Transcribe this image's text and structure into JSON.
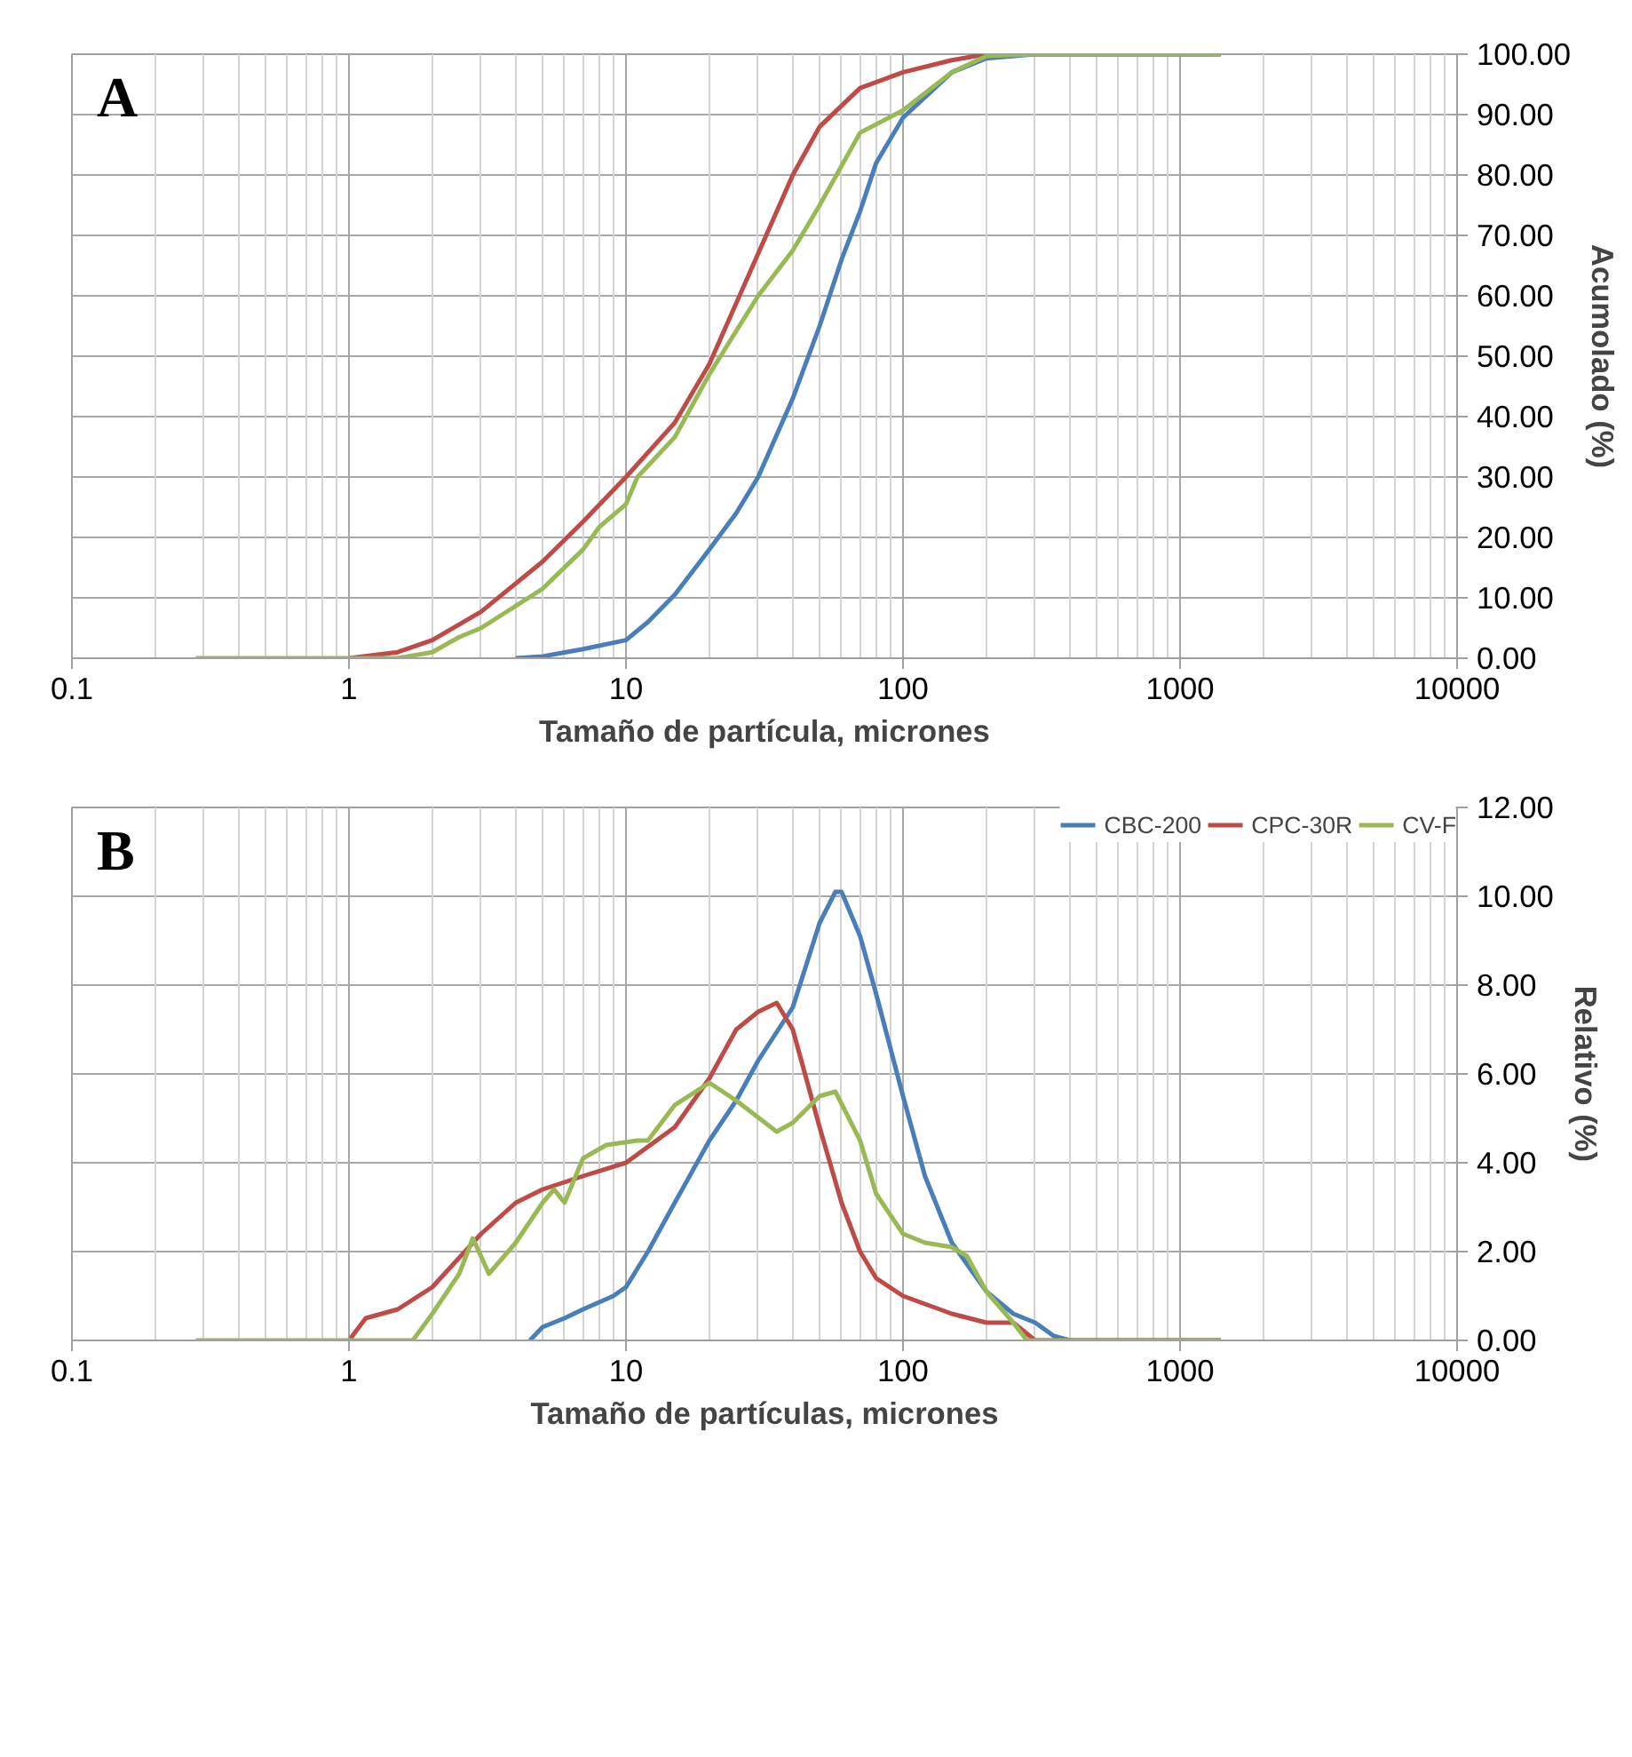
{
  "chart_data": [
    {
      "type": "line",
      "annotations": [
        "A"
      ],
      "xlabel": "Tamaño de partícula, micrones",
      "ylabel": "Acumolado (%)",
      "log": "x",
      "grid": true,
      "legend": false,
      "xlim": [
        0.1,
        10000
      ],
      "xticks": [
        0.1,
        {
          "value": 0.2,
          "label": null
        },
        {
          "value": 0.3,
          "label": null
        },
        {
          "value": 0.4,
          "label": null
        },
        {
          "value": 0.5,
          "label": null
        },
        {
          "value": 0.6,
          "label": null
        },
        {
          "value": 0.7,
          "label": null
        },
        {
          "value": 0.8,
          "label": null
        },
        {
          "value": 0.9,
          "label": null
        },
        1,
        {
          "value": 2,
          "label": null
        },
        {
          "value": 3,
          "label": null
        },
        {
          "value": 4,
          "label": null
        },
        {
          "value": 5,
          "label": null
        },
        {
          "value": 6,
          "label": null
        },
        {
          "value": 7,
          "label": null
        },
        {
          "value": 8,
          "label": null
        },
        {
          "value": 9,
          "label": null
        },
        10,
        {
          "value": 20,
          "label": null
        },
        {
          "value": 30,
          "label": null
        },
        {
          "value": 40,
          "label": null
        },
        {
          "value": 50,
          "label": null
        },
        {
          "value": 60,
          "label": null
        },
        {
          "value": 70,
          "label": null
        },
        {
          "value": 80,
          "label": null
        },
        {
          "value": 90,
          "label": null
        },
        100,
        {
          "value": 200,
          "label": null
        },
        {
          "value": 300,
          "label": null
        },
        {
          "value": 400,
          "label": null
        },
        {
          "value": 500,
          "label": null
        },
        {
          "value": 600,
          "label": null
        },
        {
          "value": 700,
          "label": null
        },
        {
          "value": 800,
          "label": null
        },
        {
          "value": 900,
          "label": null
        },
        1000,
        {
          "value": 2000,
          "label": null
        },
        {
          "value": 3000,
          "label": null
        },
        {
          "value": 4000,
          "label": null
        },
        {
          "value": 5000,
          "label": null
        },
        {
          "value": 6000,
          "label": null
        },
        {
          "value": 7000,
          "label": null
        },
        {
          "value": 8000,
          "label": null
        },
        {
          "value": 9000,
          "label": null
        },
        10000
      ],
      "ylim": [
        0,
        100
      ],
      "yticks": [
        {
          "value": 0,
          "label": "0.00"
        },
        {
          "value": 10,
          "label": "10.00"
        },
        {
          "value": 20,
          "label": "20.00"
        },
        {
          "value": 30,
          "label": "30.00"
        },
        {
          "value": 40,
          "label": "40.00"
        },
        {
          "value": 50,
          "label": "50.00"
        },
        {
          "value": 60,
          "label": "60.00"
        },
        {
          "value": 70,
          "label": "70.00"
        },
        {
          "value": 80,
          "label": "80.00"
        },
        {
          "value": 90,
          "label": "90.00"
        },
        {
          "value": 100,
          "label": "100.00"
        }
      ],
      "series": [
        {
          "color": "#4a7ebb",
          "x": [
            4,
            5,
            7,
            10,
            12,
            15,
            20,
            25,
            30,
            40,
            50,
            60,
            70,
            80,
            100,
            150,
            200,
            300,
            1400
          ],
          "values": [
            0,
            0.3,
            1.5,
            3,
            6,
            10.5,
            18,
            24,
            30,
            43,
            55,
            66,
            74,
            82,
            89.5,
            97,
            99.3,
            100,
            100
          ]
        },
        {
          "color": "#be4b48",
          "x": [
            1,
            1.5,
            2,
            3,
            5,
            7,
            10,
            15,
            20,
            30,
            40,
            50,
            70,
            100,
            150,
            200,
            300,
            1400
          ],
          "values": [
            0,
            1,
            3,
            7.7,
            16,
            22.6,
            30,
            39,
            48.7,
            67,
            80,
            88,
            94.4,
            97,
            99,
            100,
            100,
            100
          ]
        },
        {
          "color": "#98b954",
          "x": [
            0.28,
            1,
            1.5,
            2,
            2.5,
            3,
            5,
            7,
            8,
            10,
            11,
            15,
            20,
            23,
            30,
            40,
            50,
            70,
            100,
            150,
            200,
            300,
            1400
          ],
          "values": [
            0,
            0,
            0,
            1,
            3.5,
            5,
            11.5,
            18,
            21.7,
            25.5,
            30,
            36.6,
            47,
            51.5,
            60,
            67.5,
            75,
            87,
            90.7,
            97,
            99.7,
            100,
            100
          ]
        }
      ]
    },
    {
      "type": "line",
      "annotations": [
        "B"
      ],
      "xlabel": "Tamaño de partículas, micrones",
      "ylabel": "Relativo (%)",
      "log": "x",
      "grid": true,
      "legend": "top right",
      "xlim": [
        0.1,
        10000
      ],
      "xticks": [
        0.1,
        {
          "value": 0.2,
          "label": null
        },
        {
          "value": 0.3,
          "label": null
        },
        {
          "value": 0.4,
          "label": null
        },
        {
          "value": 0.5,
          "label": null
        },
        {
          "value": 0.6,
          "label": null
        },
        {
          "value": 0.7,
          "label": null
        },
        {
          "value": 0.8,
          "label": null
        },
        {
          "value": 0.9,
          "label": null
        },
        1,
        {
          "value": 2,
          "label": null
        },
        {
          "value": 3,
          "label": null
        },
        {
          "value": 4,
          "label": null
        },
        {
          "value": 5,
          "label": null
        },
        {
          "value": 6,
          "label": null
        },
        {
          "value": 7,
          "label": null
        },
        {
          "value": 8,
          "label": null
        },
        {
          "value": 9,
          "label": null
        },
        10,
        {
          "value": 20,
          "label": null
        },
        {
          "value": 30,
          "label": null
        },
        {
          "value": 40,
          "label": null
        },
        {
          "value": 50,
          "label": null
        },
        {
          "value": 60,
          "label": null
        },
        {
          "value": 70,
          "label": null
        },
        {
          "value": 80,
          "label": null
        },
        {
          "value": 90,
          "label": null
        },
        100,
        {
          "value": 200,
          "label": null
        },
        {
          "value": 300,
          "label": null
        },
        {
          "value": 400,
          "label": null
        },
        {
          "value": 500,
          "label": null
        },
        {
          "value": 600,
          "label": null
        },
        {
          "value": 700,
          "label": null
        },
        {
          "value": 800,
          "label": null
        },
        {
          "value": 900,
          "label": null
        },
        1000,
        {
          "value": 2000,
          "label": null
        },
        {
          "value": 3000,
          "label": null
        },
        {
          "value": 4000,
          "label": null
        },
        {
          "value": 5000,
          "label": null
        },
        {
          "value": 6000,
          "label": null
        },
        {
          "value": 7000,
          "label": null
        },
        {
          "value": 8000,
          "label": null
        },
        {
          "value": 9000,
          "label": null
        },
        10000
      ],
      "ylim": [
        0,
        12
      ],
      "yticks": [
        {
          "value": 0,
          "label": "0.00"
        },
        {
          "value": 2,
          "label": "2.00"
        },
        {
          "value": 4,
          "label": "4.00"
        },
        {
          "value": 6,
          "label": "6.00"
        },
        {
          "value": 8,
          "label": "8.00"
        },
        {
          "value": 10,
          "label": "10.00"
        },
        {
          "value": 12,
          "label": "12.00"
        }
      ],
      "series": [
        {
          "name": "CBC-200",
          "color": "#4a7ebb",
          "x": [
            4.5,
            5,
            6,
            7,
            9,
            10,
            12,
            15,
            20,
            25,
            30,
            40,
            50,
            57,
            60,
            70,
            80,
            100,
            120,
            150,
            200,
            250,
            300,
            350,
            400,
            1400
          ],
          "values": [
            0,
            0.3,
            0.5,
            0.7,
            1.0,
            1.2,
            2.0,
            3.1,
            4.5,
            5.4,
            6.3,
            7.5,
            9.4,
            10.1,
            10.1,
            9.1,
            7.8,
            5.5,
            3.7,
            2.2,
            1.1,
            0.6,
            0.4,
            0.1,
            0,
            0
          ]
        },
        {
          "name": "CPC-30R",
          "color": "#be4b48",
          "x": [
            1,
            1.15,
            1.5,
            2,
            3,
            4,
            5,
            7,
            10,
            15,
            20,
            25,
            30,
            35,
            40,
            50,
            60,
            70,
            80,
            100,
            150,
            200,
            250,
            300,
            1400
          ],
          "values": [
            0,
            0.5,
            0.7,
            1.2,
            2.4,
            3.1,
            3.4,
            3.7,
            4.0,
            4.8,
            5.9,
            7.0,
            7.4,
            7.6,
            7.0,
            4.8,
            3.1,
            2.0,
            1.4,
            1.0,
            0.6,
            0.4,
            0.4,
            0,
            0
          ]
        },
        {
          "name": "CV-F",
          "color": "#98b954",
          "x": [
            0.28,
            1,
            1.7,
            2,
            2.5,
            2.8,
            3.2,
            4,
            5,
            5.5,
            6,
            7,
            8.5,
            11,
            12,
            15,
            20,
            25,
            35,
            40,
            50,
            57,
            70,
            80,
            100,
            120,
            150,
            170,
            200,
            250,
            280,
            1400
          ],
          "values": [
            0,
            0,
            0,
            0.6,
            1.5,
            2.3,
            1.5,
            2.2,
            3.1,
            3.4,
            3.1,
            4.1,
            4.4,
            4.5,
            4.5,
            5.3,
            5.8,
            5.4,
            4.7,
            4.9,
            5.5,
            5.6,
            4.5,
            3.3,
            2.4,
            2.2,
            2.1,
            1.9,
            1.1,
            0.4,
            0,
            0
          ]
        }
      ]
    }
  ]
}
